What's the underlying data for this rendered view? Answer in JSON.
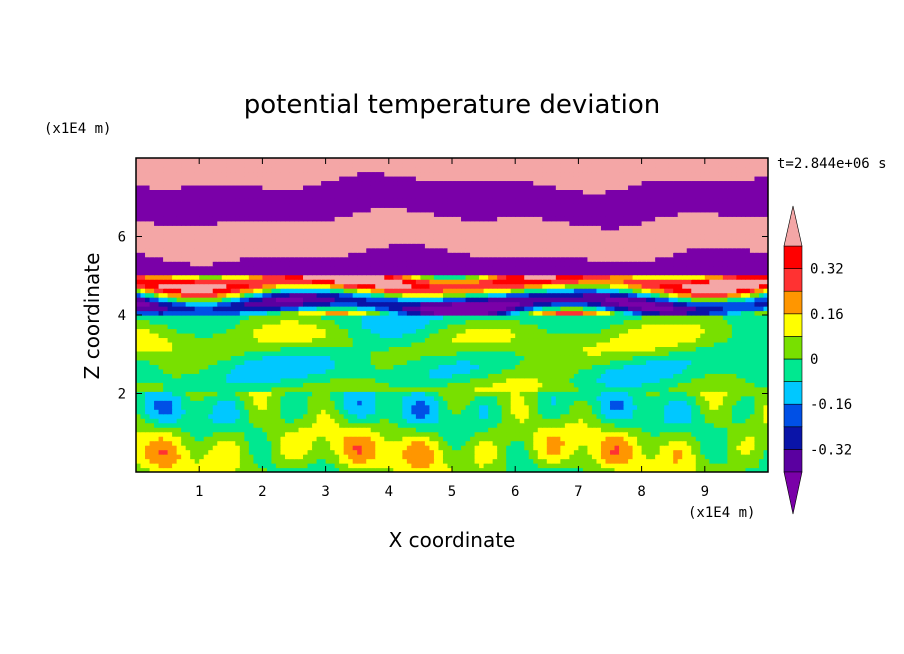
{
  "chart_data": {
    "type": "heatmap",
    "title": "potential temperature deviation",
    "xlabel": "X coordinate",
    "ylabel": "Z coordinate",
    "x_unit": "(x1E4 m)",
    "y_unit": "(x1E4 m)",
    "time_label": "t=2.844e+06 s",
    "xlim": [
      0,
      10
    ],
    "ylim": [
      0,
      8
    ],
    "x_ticks": [
      "1",
      "2",
      "3",
      "4",
      "5",
      "6",
      "7",
      "8",
      "9"
    ],
    "x_tick_values": [
      1,
      2,
      3,
      4,
      5,
      6,
      7,
      8,
      9
    ],
    "y_ticks": [
      "2",
      "4",
      "6"
    ],
    "y_tick_values": [
      2,
      4,
      6
    ],
    "colorbar": {
      "levels": [
        -0.4,
        -0.32,
        -0.24,
        -0.16,
        -0.08,
        0,
        0.08,
        0.16,
        0.24,
        0.32,
        0.4
      ],
      "tick_labels": [
        "0.32",
        "0.16",
        "0",
        "-0.16",
        "-0.32"
      ],
      "tick_values": [
        0.32,
        0.16,
        0,
        -0.16,
        -0.32
      ],
      "colors": [
        "#7a00a8",
        "#5a00a0",
        "#0a14a8",
        "#0050e6",
        "#00c8ff",
        "#00e890",
        "#78e000",
        "#ffff00",
        "#ff9600",
        "#ff3232",
        "#ff0000",
        "#f4a6a6"
      ],
      "extend": "both"
    },
    "structure_note_bands": [
      {
        "z_range": [
          5.0,
          8.0
        ],
        "dominant": [
          "#f4a6a6",
          "#7a00a8"
        ]
      },
      {
        "z_range": [
          4.0,
          5.0
        ],
        "dominant": [
          "mixed"
        ]
      },
      {
        "z_range": [
          2.0,
          4.0
        ],
        "dominant": [
          "#00e890",
          "#78e000",
          "#00c8ff"
        ]
      },
      {
        "z_range": [
          0.0,
          2.0
        ],
        "dominant": [
          "#78e000",
          "#ffff00",
          "#00c8ff"
        ]
      }
    ]
  }
}
